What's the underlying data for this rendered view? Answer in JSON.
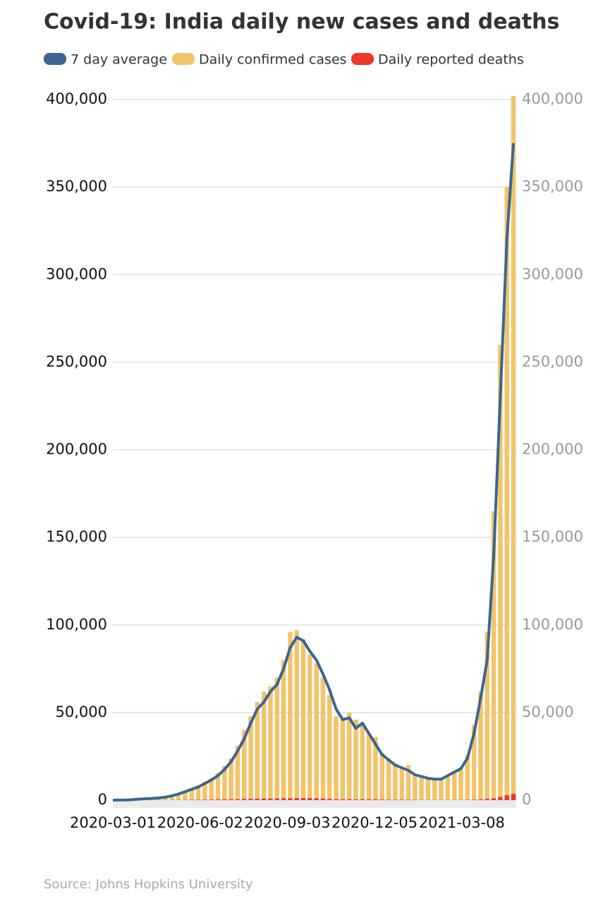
{
  "chart_data": {
    "type": "bar-line",
    "title": "Covid-19: India daily new cases and deaths",
    "source": "Source: Johns Hopkins University",
    "x": [
      "2020-03-01",
      "2020-03-08",
      "2020-03-15",
      "2020-03-22",
      "2020-03-29",
      "2020-04-05",
      "2020-04-12",
      "2020-04-19",
      "2020-04-26",
      "2020-05-03",
      "2020-05-10",
      "2020-05-17",
      "2020-05-24",
      "2020-05-31",
      "2020-06-07",
      "2020-06-14",
      "2020-06-21",
      "2020-06-28",
      "2020-07-05",
      "2020-07-12",
      "2020-07-19",
      "2020-07-26",
      "2020-08-02",
      "2020-08-09",
      "2020-08-16",
      "2020-08-23",
      "2020-08-30",
      "2020-09-06",
      "2020-09-13",
      "2020-09-20",
      "2020-09-27",
      "2020-10-04",
      "2020-10-11",
      "2020-10-18",
      "2020-10-25",
      "2020-11-01",
      "2020-11-08",
      "2020-11-15",
      "2020-11-22",
      "2020-11-29",
      "2020-12-06",
      "2020-12-13",
      "2020-12-20",
      "2020-12-27",
      "2021-01-03",
      "2021-01-10",
      "2021-01-17",
      "2021-01-24",
      "2021-01-31",
      "2021-02-07",
      "2021-02-14",
      "2021-02-21",
      "2021-02-28",
      "2021-03-07",
      "2021-03-14",
      "2021-03-21",
      "2021-03-28",
      "2021-04-04",
      "2021-04-11",
      "2021-04-18",
      "2021-04-25",
      "2021-05-02"
    ],
    "series": [
      {
        "name": "7 day average",
        "mark": "line",
        "color": "#3a6690",
        "values": [
          0,
          50,
          100,
          300,
          600,
          800,
          1000,
          1300,
          1700,
          2500,
          3500,
          4800,
          6200,
          7500,
          9500,
          11500,
          14000,
          17500,
          22000,
          28000,
          35000,
          44000,
          52000,
          56000,
          62000,
          66000,
          75000,
          87000,
          93000,
          91000,
          85000,
          80000,
          72000,
          63000,
          52000,
          46000,
          47000,
          41000,
          44000,
          38000,
          32000,
          26000,
          23000,
          20000,
          18500,
          17000,
          14500,
          13500,
          12500,
          12000,
          12000,
          14000,
          16000,
          18000,
          24000,
          38000,
          58000,
          80000,
          140000,
          230000,
          320000,
          375000
        ]
      },
      {
        "name": "Daily confirmed cases",
        "mark": "bar",
        "color": "#f2c46b",
        "values": [
          0,
          100,
          150,
          500,
          900,
          1000,
          1200,
          1600,
          2100,
          3000,
          4000,
          5500,
          7000,
          8500,
          10500,
          12500,
          15500,
          19500,
          24000,
          31000,
          40000,
          48000,
          56000,
          62000,
          65000,
          70000,
          80000,
          96000,
          97000,
          92000,
          83000,
          78000,
          70000,
          60000,
          48000,
          47000,
          50000,
          46000,
          44000,
          38000,
          36000,
          27000,
          24000,
          21000,
          18000,
          20000,
          15000,
          14000,
          13000,
          12500,
          11500,
          13500,
          16500,
          18500,
          26000,
          43000,
          62000,
          96000,
          165000,
          260000,
          350000,
          402000
        ]
      },
      {
        "name": "Daily reported deaths",
        "mark": "bar",
        "color": "#e8392a",
        "values": [
          0,
          0,
          0,
          5,
          20,
          40,
          40,
          50,
          70,
          90,
          120,
          150,
          180,
          230,
          300,
          350,
          450,
          450,
          500,
          550,
          680,
          750,
          850,
          900,
          950,
          1000,
          1050,
          1100,
          1150,
          1200,
          1150,
          1050,
          900,
          700,
          550,
          500,
          550,
          500,
          500,
          480,
          450,
          350,
          300,
          280,
          250,
          220,
          180,
          150,
          120,
          100,
          100,
          100,
          110,
          130,
          200,
          250,
          400,
          700,
          1000,
          1800,
          2800,
          3600
        ]
      }
    ],
    "xlim": [
      "2020-03-01",
      "2021-05-05"
    ],
    "xticks": [
      "2020-03-01",
      "2020-06-02",
      "2020-09-03",
      "2020-12-05",
      "2021-03-08"
    ],
    "ylim": [
      0,
      400000
    ],
    "yticks": [
      0,
      {
        "value": 50000,
        "label": "50,000"
      },
      {
        "value": 100000,
        "label": "100,000"
      },
      {
        "value": 150000,
        "label": "150,000"
      },
      {
        "value": 200000,
        "label": "200,000"
      },
      {
        "value": 250000,
        "label": "250,000"
      },
      {
        "value": 300000,
        "label": "300,000"
      },
      {
        "value": 350000,
        "label": "350,000"
      },
      {
        "value": 400000,
        "label": "400,000"
      }
    ],
    "y2lim": [
      0,
      400000
    ],
    "y2ticks": [
      0,
      {
        "value": 50000,
        "label": "50,000"
      },
      {
        "value": 100000,
        "label": "100,000"
      },
      {
        "value": 150000,
        "label": "150,000"
      },
      {
        "value": 200000,
        "label": "200,000"
      },
      {
        "value": 250000,
        "label": "250,000"
      },
      {
        "value": 300000,
        "label": "300,000"
      },
      {
        "value": 350000,
        "label": "350,000"
      },
      {
        "value": 400000,
        "label": "400,000"
      }
    ],
    "grid": true
  }
}
